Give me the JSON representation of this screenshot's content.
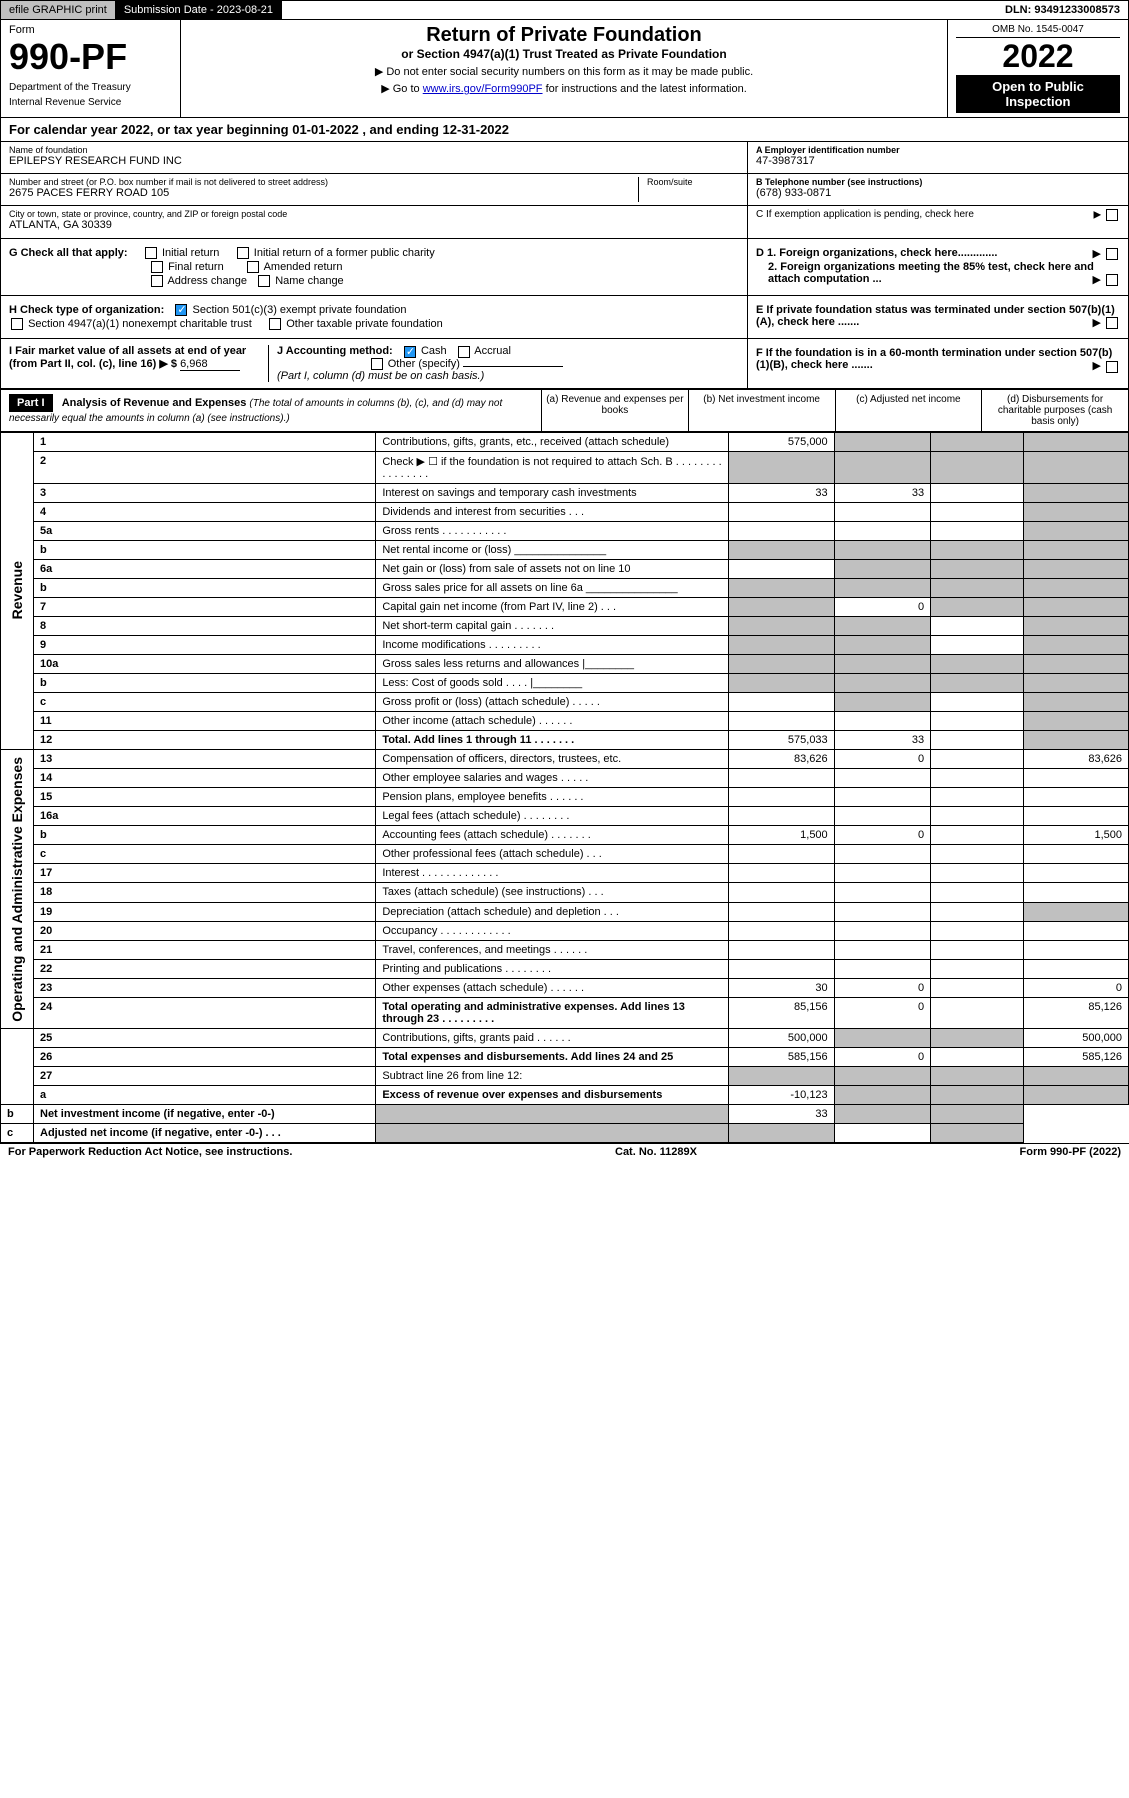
{
  "topbar": {
    "efile": "efile GRAPHIC print",
    "submission_label": "Submission Date - 2023-08-21",
    "dln": "DLN: 93491233008573"
  },
  "header": {
    "form_label": "Form",
    "form_number": "990-PF",
    "dept": "Department of the Treasury",
    "irs": "Internal Revenue Service",
    "title": "Return of Private Foundation",
    "subtitle": "or Section 4947(a)(1) Trust Treated as Private Foundation",
    "note1": "▶ Do not enter social security numbers on this form as it may be made public.",
    "note2_pre": "▶ Go to ",
    "note2_link": "www.irs.gov/Form990PF",
    "note2_post": " for instructions and the latest information.",
    "omb": "OMB No. 1545-0047",
    "year": "2022",
    "open_public": "Open to Public Inspection"
  },
  "cal_year": "For calendar year 2022, or tax year beginning 01-01-2022                          , and ending 12-31-2022",
  "info": {
    "name_label": "Name of foundation",
    "name": "EPILEPSY RESEARCH FUND INC",
    "addr_label": "Number and street (or P.O. box number if mail is not delivered to street address)",
    "addr": "2675 PACES FERRY ROAD 105",
    "room_label": "Room/suite",
    "city_label": "City or town, state or province, country, and ZIP or foreign postal code",
    "city": "ATLANTA, GA  30339",
    "ein_label": "A Employer identification number",
    "ein": "47-3987317",
    "phone_label": "B Telephone number (see instructions)",
    "phone": "(678) 933-0871",
    "pending": "C If exemption application is pending, check here",
    "d1": "D 1. Foreign organizations, check here.............",
    "d2": "2. Foreign organizations meeting the 85% test, check here and attach computation ...",
    "e": "E  If private foundation status was terminated under section 507(b)(1)(A), check here .......",
    "f": "F  If the foundation is in a 60-month termination under section 507(b)(1)(B), check here ......."
  },
  "checks": {
    "g_label": "G Check all that apply:",
    "g_initial": "Initial return",
    "g_initial_former": "Initial return of a former public charity",
    "g_final": "Final return",
    "g_amended": "Amended return",
    "g_address": "Address change",
    "g_name": "Name change",
    "h_label": "H Check type of organization:",
    "h_501c3": "Section 501(c)(3) exempt private foundation",
    "h_4947": "Section 4947(a)(1) nonexempt charitable trust",
    "h_other": "Other taxable private foundation",
    "i_label": "I Fair market value of all assets at end of year (from Part II, col. (c), line 16) ▶ $",
    "i_value": "6,968",
    "j_label": "J Accounting method:",
    "j_cash": "Cash",
    "j_accrual": "Accrual",
    "j_other": "Other (specify)",
    "j_note": "(Part I, column (d) must be on cash basis.)"
  },
  "part1": {
    "header": "Part I",
    "title": "Analysis of Revenue and Expenses",
    "title_note": "(The total of amounts in columns (b), (c), and (d) may not necessarily equal the amounts in column (a) (see instructions).)",
    "col_a": "(a)   Revenue and expenses per books",
    "col_b": "(b)   Net investment income",
    "col_c": "(c)   Adjusted net income",
    "col_d": "(d)   Disbursements for charitable purposes (cash basis only)"
  },
  "side_labels": {
    "revenue": "Revenue",
    "expenses": "Operating and Administrative Expenses"
  },
  "rows": [
    {
      "n": "1",
      "label": "Contributions, gifts, grants, etc., received (attach schedule)",
      "a": "575,000",
      "b": "",
      "c": "",
      "d": "",
      "b_s": true,
      "c_s": true,
      "d_s": true
    },
    {
      "n": "2",
      "label": "Check ▶ ☐ if the foundation is not required to attach Sch. B    .  .  .  .  .  .  .  .  .  .  .  .  .  .  .  .",
      "a": "",
      "b": "",
      "c": "",
      "d": "",
      "a_s": true,
      "b_s": true,
      "c_s": true,
      "d_s": true
    },
    {
      "n": "3",
      "label": "Interest on savings and temporary cash investments",
      "a": "33",
      "b": "33",
      "c": "",
      "d": "",
      "d_s": true
    },
    {
      "n": "4",
      "label": "Dividends and interest from securities   .   .   .",
      "a": "",
      "b": "",
      "c": "",
      "d": "",
      "d_s": true
    },
    {
      "n": "5a",
      "label": "Gross rents     .   .   .   .   .   .   .   .   .   .   .",
      "a": "",
      "b": "",
      "c": "",
      "d": "",
      "d_s": true
    },
    {
      "n": "b",
      "label": "Net rental income or (loss)  _______________",
      "a": "",
      "b": "",
      "c": "",
      "d": "",
      "a_s": true,
      "b_s": true,
      "c_s": true,
      "d_s": true
    },
    {
      "n": "6a",
      "label": "Net gain or (loss) from sale of assets not on line 10",
      "a": "",
      "b": "",
      "c": "",
      "d": "",
      "b_s": true,
      "c_s": true,
      "d_s": true
    },
    {
      "n": "b",
      "label": "Gross sales price for all assets on line 6a _______________",
      "a": "",
      "b": "",
      "c": "",
      "d": "",
      "a_s": true,
      "b_s": true,
      "c_s": true,
      "d_s": true
    },
    {
      "n": "7",
      "label": "Capital gain net income (from Part IV, line 2)   .   .   .",
      "a": "",
      "b": "0",
      "c": "",
      "d": "",
      "a_s": true,
      "c_s": true,
      "d_s": true
    },
    {
      "n": "8",
      "label": "Net short-term capital gain   .   .   .   .   .   .   .",
      "a": "",
      "b": "",
      "c": "",
      "d": "",
      "a_s": true,
      "b_s": true,
      "d_s": true
    },
    {
      "n": "9",
      "label": "Income modifications  .   .   .   .   .   .   .   .   .",
      "a": "",
      "b": "",
      "c": "",
      "d": "",
      "a_s": true,
      "b_s": true,
      "d_s": true
    },
    {
      "n": "10a",
      "label": "Gross sales less returns and allowances   |________",
      "a": "",
      "b": "",
      "c": "",
      "d": "",
      "a_s": true,
      "b_s": true,
      "c_s": true,
      "d_s": true
    },
    {
      "n": "b",
      "label": "Less: Cost of goods sold    .   .   .   .   |________",
      "a": "",
      "b": "",
      "c": "",
      "d": "",
      "a_s": true,
      "b_s": true,
      "c_s": true,
      "d_s": true
    },
    {
      "n": "c",
      "label": "Gross profit or (loss) (attach schedule)   .   .   .   .   .",
      "a": "",
      "b": "",
      "c": "",
      "d": "",
      "b_s": true,
      "d_s": true
    },
    {
      "n": "11",
      "label": "Other income (attach schedule)    .   .   .   .   .   .",
      "a": "",
      "b": "",
      "c": "",
      "d": "",
      "d_s": true
    },
    {
      "n": "12",
      "label": "Total. Add lines 1 through 11   .   .   .   .   .   .   .",
      "a": "575,033",
      "b": "33",
      "c": "",
      "d": "",
      "bold": true,
      "d_s": true
    },
    {
      "n": "13",
      "label": "Compensation of officers, directors, trustees, etc.",
      "a": "83,626",
      "b": "0",
      "c": "",
      "d": "83,626"
    },
    {
      "n": "14",
      "label": "Other employee salaries and wages    .   .   .   .   .",
      "a": "",
      "b": "",
      "c": "",
      "d": ""
    },
    {
      "n": "15",
      "label": "Pension plans, employee benefits   .   .   .   .   .   .",
      "a": "",
      "b": "",
      "c": "",
      "d": ""
    },
    {
      "n": "16a",
      "label": "Legal fees (attach schedule)  .   .   .   .   .   .   .   .",
      "a": "",
      "b": "",
      "c": "",
      "d": ""
    },
    {
      "n": "b",
      "label": "Accounting fees (attach schedule)  .   .   .   .   .   .   .",
      "a": "1,500",
      "b": "0",
      "c": "",
      "d": "1,500"
    },
    {
      "n": "c",
      "label": "Other professional fees (attach schedule)    .   .   .",
      "a": "",
      "b": "",
      "c": "",
      "d": ""
    },
    {
      "n": "17",
      "label": "Interest  .   .   .   .   .   .   .   .   .   .   .   .   .",
      "a": "",
      "b": "",
      "c": "",
      "d": ""
    },
    {
      "n": "18",
      "label": "Taxes (attach schedule) (see instructions)    .   .   .",
      "a": "",
      "b": "",
      "c": "",
      "d": ""
    },
    {
      "n": "19",
      "label": "Depreciation (attach schedule) and depletion    .   .   .",
      "a": "",
      "b": "",
      "c": "",
      "d": "",
      "d_s": true
    },
    {
      "n": "20",
      "label": "Occupancy  .   .   .   .   .   .   .   .   .   .   .   .",
      "a": "",
      "b": "",
      "c": "",
      "d": ""
    },
    {
      "n": "21",
      "label": "Travel, conferences, and meetings  .   .   .   .   .   .",
      "a": "",
      "b": "",
      "c": "",
      "d": ""
    },
    {
      "n": "22",
      "label": "Printing and publications  .   .   .   .   .   .   .   .",
      "a": "",
      "b": "",
      "c": "",
      "d": ""
    },
    {
      "n": "23",
      "label": "Other expenses (attach schedule)  .   .   .   .   .   .",
      "a": "30",
      "b": "0",
      "c": "",
      "d": "0"
    },
    {
      "n": "24",
      "label": "Total operating and administrative expenses. Add lines 13 through 23   .   .   .   .   .   .   .   .   .",
      "a": "85,156",
      "b": "0",
      "c": "",
      "d": "85,126",
      "bold": true
    },
    {
      "n": "25",
      "label": "Contributions, gifts, grants paid    .   .   .   .   .   .",
      "a": "500,000",
      "b": "",
      "c": "",
      "d": "500,000",
      "b_s": true,
      "c_s": true
    },
    {
      "n": "26",
      "label": "Total expenses and disbursements. Add lines 24 and 25",
      "a": "585,156",
      "b": "0",
      "c": "",
      "d": "585,126",
      "bold": true
    },
    {
      "n": "27",
      "label": "Subtract line 26 from line 12:",
      "a": "",
      "b": "",
      "c": "",
      "d": "",
      "a_s": true,
      "b_s": true,
      "c_s": true,
      "d_s": true
    },
    {
      "n": "a",
      "label": "Excess of revenue over expenses and disbursements",
      "a": "-10,123",
      "b": "",
      "c": "",
      "d": "",
      "bold": true,
      "b_s": true,
      "c_s": true,
      "d_s": true
    },
    {
      "n": "b",
      "label": "Net investment income (if negative, enter -0-)",
      "a": "",
      "b": "33",
      "c": "",
      "d": "",
      "bold": true,
      "a_s": true,
      "c_s": true,
      "d_s": true
    },
    {
      "n": "c",
      "label": "Adjusted net income (if negative, enter -0-)   .   .   .",
      "a": "",
      "b": "",
      "c": "",
      "d": "",
      "bold": true,
      "a_s": true,
      "b_s": true,
      "d_s": true
    }
  ],
  "footer": {
    "left": "For Paperwork Reduction Act Notice, see instructions.",
    "center": "Cat. No. 11289X",
    "right": "Form 990-PF (2022)"
  }
}
